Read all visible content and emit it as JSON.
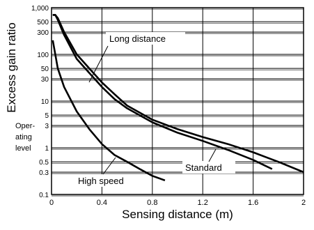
{
  "chart_data": {
    "type": "line",
    "xlabel": "Sensing distance (m)",
    "ylabel": "Excess gain ratio",
    "x_scale": "linear",
    "y_scale": "log",
    "xlim": [
      0,
      2
    ],
    "ylim": [
      0.1,
      1000
    ],
    "x_ticks": [
      "0",
      "0.4",
      "0.8",
      "1.2",
      "1.6",
      "2"
    ],
    "y_ticks": [
      {
        "value": 1000,
        "label": "1,000"
      },
      {
        "value": 500,
        "label": "500"
      },
      {
        "value": 300,
        "label": "300"
      },
      {
        "value": 100,
        "label": "100"
      },
      {
        "value": 50,
        "label": "50"
      },
      {
        "value": 30,
        "label": "30"
      },
      {
        "value": 10,
        "label": "10"
      },
      {
        "value": 5,
        "label": "5"
      },
      {
        "value": 3,
        "label": "3"
      },
      {
        "value": 1,
        "label": "1"
      },
      {
        "value": 0.5,
        "label": "0.5"
      },
      {
        "value": 0.3,
        "label": "0.3"
      },
      {
        "value": 0.1,
        "label": "0.1"
      }
    ],
    "operating_level_label": [
      "Oper-",
      "ating",
      "level"
    ],
    "operating_level_value": 1,
    "grid": true,
    "series": [
      {
        "name": "Long distance",
        "points": [
          [
            0.01,
            700
          ],
          [
            0.03,
            700
          ],
          [
            0.05,
            600
          ],
          [
            0.1,
            300
          ],
          [
            0.2,
            100
          ],
          [
            0.3,
            50
          ],
          [
            0.4,
            25
          ],
          [
            0.5,
            14
          ],
          [
            0.6,
            8
          ],
          [
            0.8,
            4
          ],
          [
            1.0,
            2.5
          ],
          [
            1.2,
            1.7
          ],
          [
            1.4,
            1.2
          ],
          [
            1.6,
            0.8
          ],
          [
            1.8,
            0.5
          ],
          [
            2.0,
            0.3
          ]
        ]
      },
      {
        "name": "Standard",
        "points": [
          [
            0.01,
            700
          ],
          [
            0.03,
            700
          ],
          [
            0.05,
            550
          ],
          [
            0.1,
            260
          ],
          [
            0.2,
            80
          ],
          [
            0.3,
            40
          ],
          [
            0.4,
            20
          ],
          [
            0.5,
            11
          ],
          [
            0.6,
            7
          ],
          [
            0.8,
            3.5
          ],
          [
            1.0,
            2.1
          ],
          [
            1.2,
            1.4
          ],
          [
            1.4,
            0.9
          ],
          [
            1.6,
            0.55
          ],
          [
            1.75,
            0.35
          ]
        ]
      },
      {
        "name": "High speed",
        "points": [
          [
            0.01,
            200
          ],
          [
            0.03,
            100
          ],
          [
            0.05,
            50
          ],
          [
            0.1,
            20
          ],
          [
            0.2,
            6
          ],
          [
            0.3,
            2.5
          ],
          [
            0.4,
            1.2
          ],
          [
            0.5,
            0.7
          ],
          [
            0.6,
            0.5
          ],
          [
            0.7,
            0.35
          ],
          [
            0.8,
            0.25
          ],
          [
            0.9,
            0.2
          ]
        ]
      }
    ]
  }
}
